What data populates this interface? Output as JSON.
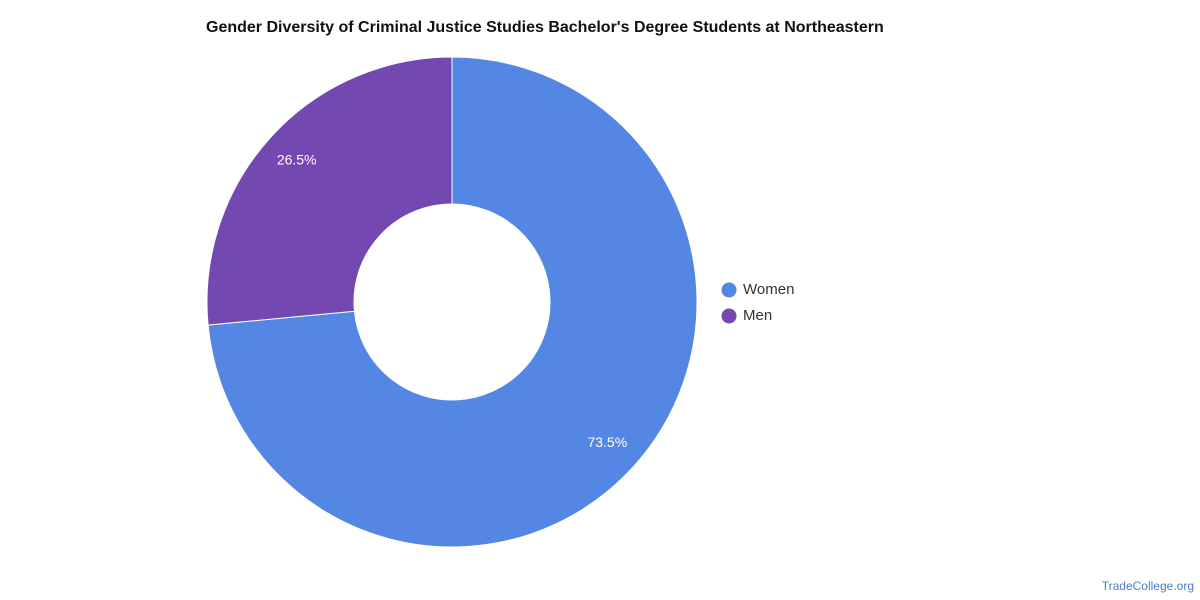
{
  "chart_data": {
    "type": "donut",
    "title": "Gender Diversity of Criminal Justice Studies Bachelor's Degree Students at Northeastern",
    "categories": [
      "Women",
      "Men"
    ],
    "values": [
      73.5,
      26.5
    ],
    "value_labels": [
      "73.5%",
      "26.5%"
    ],
    "colors": [
      "#5486e3",
      "#7348b0"
    ],
    "legend": "right",
    "source": "TradeCollege.org"
  }
}
